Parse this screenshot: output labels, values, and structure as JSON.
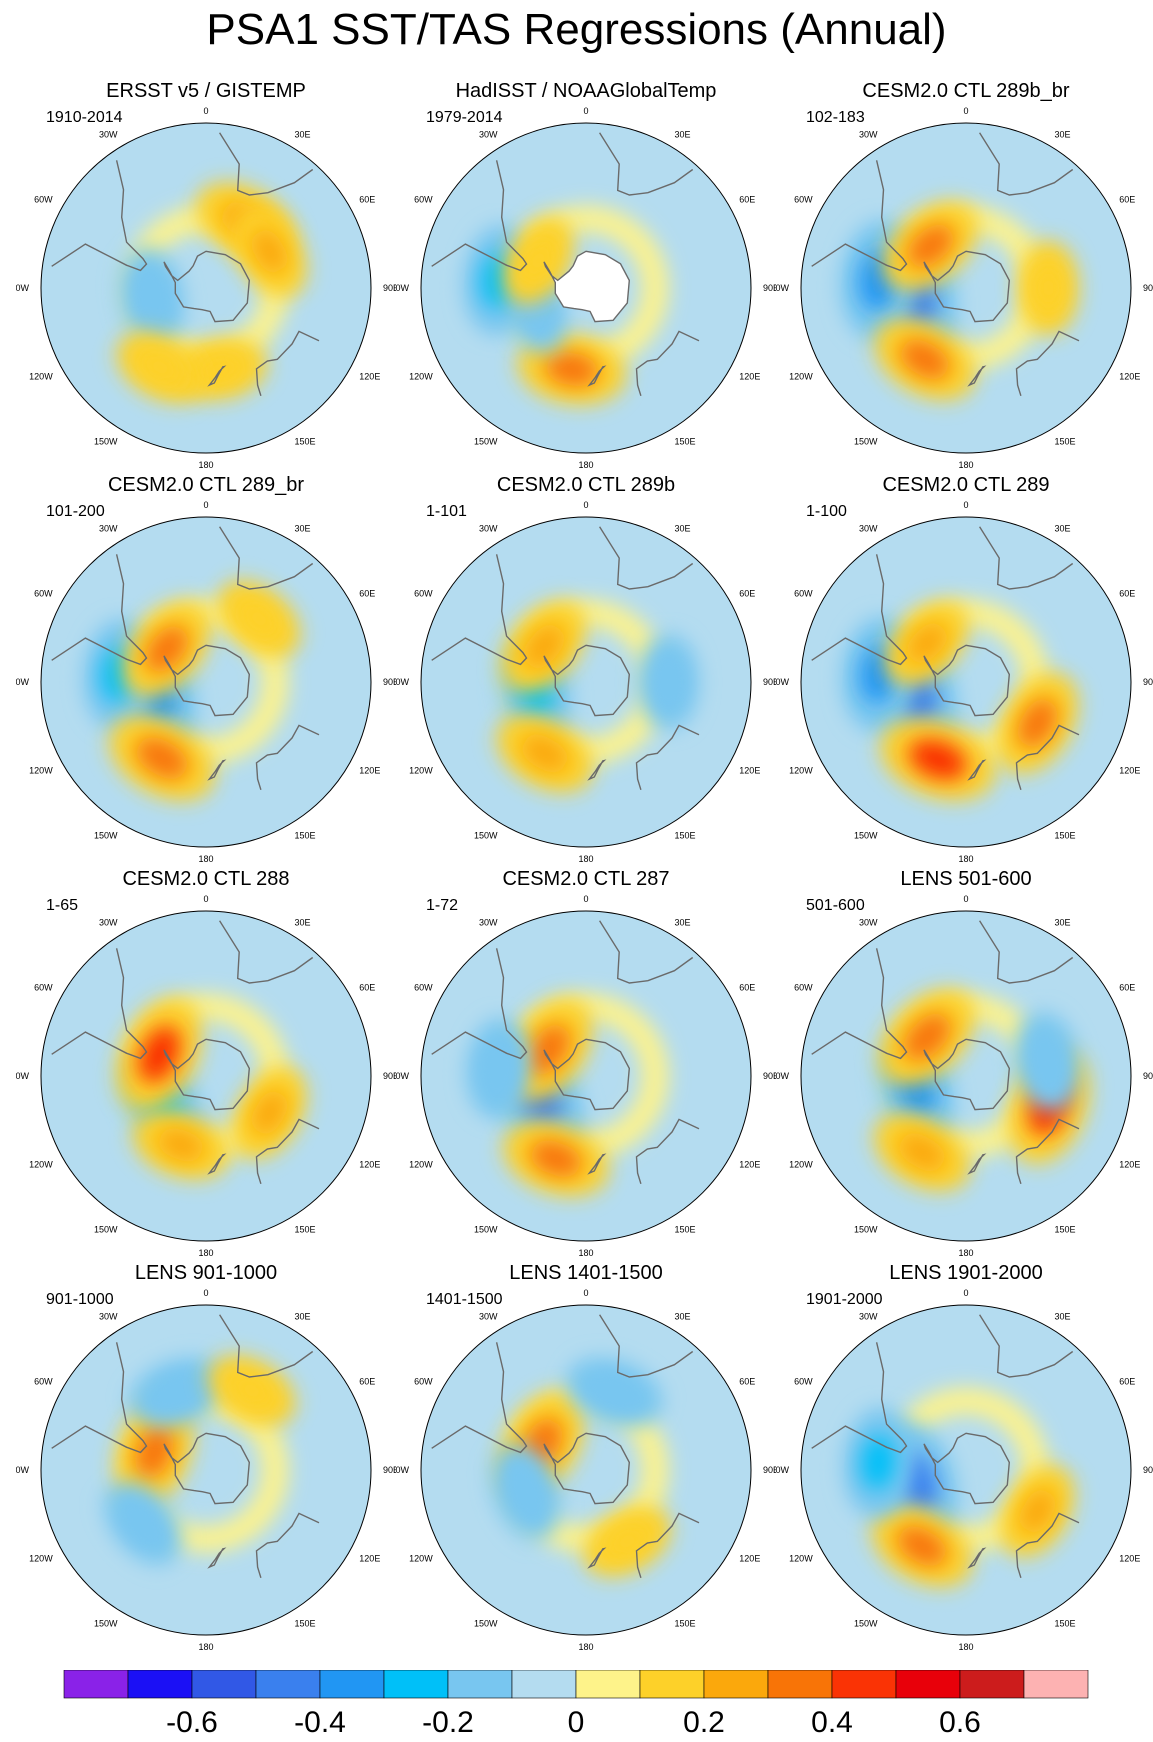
{
  "title": "PSA1 SST/TAS Regressions (Annual)",
  "longitude_labels": [
    "0",
    "30E",
    "60E",
    "90E",
    "120E",
    "150E",
    "180",
    "150W",
    "120W",
    "90W",
    "60W",
    "30W"
  ],
  "panels": [
    {
      "title": "ERSST v5 / GISTEMP",
      "period": "1910-2014",
      "masked": false,
      "anomalies": [
        {
          "lon": 30,
          "lat": -48,
          "level": 0.25
        },
        {
          "lon": -100,
          "lat": -60,
          "level": -0.2
        },
        {
          "lon": 170,
          "lat": -45,
          "level": 0.15
        },
        {
          "lon": -150,
          "lat": -40,
          "level": 0.15
        },
        {
          "lon": 60,
          "lat": -50,
          "level": 0.2
        }
      ]
    },
    {
      "title": "HadISST / NOAAGlobalTemp",
      "period": "1979-2014",
      "masked": true,
      "anomalies": [
        {
          "lon": -170,
          "lat": -45,
          "level": 0.3
        },
        {
          "lon": -110,
          "lat": -60,
          "level": -0.15
        },
        {
          "lon": -85,
          "lat": -42,
          "level": -0.3
        },
        {
          "lon": -60,
          "lat": -60,
          "level": 0.15
        }
      ]
    },
    {
      "title": "CESM2.0 CTL 289b_br",
      "period": "102-183",
      "masked": false,
      "anomalies": [
        {
          "lon": -100,
          "lat": -62,
          "level": -0.5
        },
        {
          "lon": -85,
          "lat": -42,
          "level": -0.4
        },
        {
          "lon": -150,
          "lat": -45,
          "level": 0.3
        },
        {
          "lon": -40,
          "lat": -60,
          "level": 0.3
        },
        {
          "lon": 90,
          "lat": -45,
          "level": 0.15
        }
      ]
    },
    {
      "title": "CESM2.0 CTL 289_br",
      "period": "101-200",
      "masked": false,
      "anomalies": [
        {
          "lon": -105,
          "lat": -62,
          "level": -0.4
        },
        {
          "lon": -85,
          "lat": -42,
          "level": -0.3
        },
        {
          "lon": -150,
          "lat": -42,
          "level": 0.35
        },
        {
          "lon": -50,
          "lat": -62,
          "level": 0.3
        },
        {
          "lon": 40,
          "lat": -45,
          "level": 0.15
        }
      ]
    },
    {
      "title": "CESM2.0 CTL 289b",
      "period": "1-101",
      "masked": false,
      "anomalies": [
        {
          "lon": -100,
          "lat": -62,
          "level": -0.3
        },
        {
          "lon": -150,
          "lat": -45,
          "level": 0.25
        },
        {
          "lon": -50,
          "lat": -60,
          "level": 0.25
        },
        {
          "lon": 90,
          "lat": -45,
          "level": -0.15
        }
      ]
    },
    {
      "title": "CESM2.0 CTL 289",
      "period": "1-100",
      "masked": false,
      "anomalies": [
        {
          "lon": -105,
          "lat": -62,
          "level": -0.45
        },
        {
          "lon": -85,
          "lat": -42,
          "level": -0.35
        },
        {
          "lon": -160,
          "lat": -45,
          "level": 0.4
        },
        {
          "lon": -45,
          "lat": -60,
          "level": 0.2
        },
        {
          "lon": 120,
          "lat": -45,
          "level": 0.3
        }
      ]
    },
    {
      "title": "CESM2.0 CTL 288",
      "period": "1-65",
      "masked": false,
      "anomalies": [
        {
          "lon": -120,
          "lat": -62,
          "level": -0.3
        },
        {
          "lon": -65,
          "lat": -62,
          "level": 0.4
        },
        {
          "lon": -160,
          "lat": -50,
          "level": 0.2
        },
        {
          "lon": 120,
          "lat": -50,
          "level": 0.2
        }
      ]
    },
    {
      "title": "CESM2.0 CTL 287",
      "period": "1-72",
      "masked": false,
      "anomalies": [
        {
          "lon": -115,
          "lat": -62,
          "level": -0.45
        },
        {
          "lon": -55,
          "lat": -65,
          "level": 0.35
        },
        {
          "lon": -160,
          "lat": -42,
          "level": 0.3
        },
        {
          "lon": -85,
          "lat": -42,
          "level": -0.2
        }
      ]
    },
    {
      "title": "LENS 501-600",
      "period": "501-600",
      "masked": false,
      "anomalies": [
        {
          "lon": -105,
          "lat": -62,
          "level": -0.35
        },
        {
          "lon": -45,
          "lat": -60,
          "level": 0.35
        },
        {
          "lon": -150,
          "lat": -42,
          "level": 0.25
        },
        {
          "lon": 110,
          "lat": -42,
          "level": 0.4
        },
        {
          "lon": 80,
          "lat": -45,
          "level": -0.2
        }
      ]
    },
    {
      "title": "LENS 901-1000",
      "period": "901-1000",
      "masked": false,
      "anomalies": [
        {
          "lon": -70,
          "lat": -60,
          "level": 0.35
        },
        {
          "lon": -20,
          "lat": -45,
          "level": -0.2
        },
        {
          "lon": -130,
          "lat": -45,
          "level": -0.15
        },
        {
          "lon": 30,
          "lat": -40,
          "level": 0.15
        }
      ]
    },
    {
      "title": "LENS 1401-1500",
      "period": "1401-1500",
      "masked": false,
      "anomalies": [
        {
          "lon": -60,
          "lat": -62,
          "level": 0.35
        },
        {
          "lon": -110,
          "lat": -55,
          "level": -0.2
        },
        {
          "lon": 20,
          "lat": -45,
          "level": -0.2
        },
        {
          "lon": 150,
          "lat": -45,
          "level": 0.15
        }
      ]
    },
    {
      "title": "LENS 1901-2000",
      "period": "1901-2000",
      "masked": false,
      "anomalies": [
        {
          "lon": -105,
          "lat": -62,
          "level": -0.45
        },
        {
          "lon": -150,
          "lat": -42,
          "level": 0.3
        },
        {
          "lon": -85,
          "lat": -42,
          "level": -0.3
        },
        {
          "lon": 120,
          "lat": -45,
          "level": 0.2
        }
      ]
    }
  ],
  "colorbar": {
    "levels": [
      -0.7,
      -0.6,
      -0.5,
      -0.4,
      -0.3,
      -0.2,
      -0.1,
      0,
      0.1,
      0.2,
      0.3,
      0.4,
      0.5,
      0.6,
      0.7
    ],
    "colors": [
      "#8a22e8",
      "#1b10f5",
      "#3158e6",
      "#3a80ee",
      "#2196f3",
      "#00c0f8",
      "#78c6f0",
      "#b4dcf0",
      "#fef38a",
      "#fdd129",
      "#fba80c",
      "#f87407",
      "#fa3305",
      "#e8000a",
      "#cc1c1c",
      "#fdb2b2"
    ],
    "tick_labels": [
      "-0.6",
      "-0.4",
      "-0.2",
      "0",
      "0.2",
      "0.4",
      "0.6"
    ],
    "tick_values": [
      -0.6,
      -0.4,
      -0.2,
      0,
      0.2,
      0.4,
      0.6
    ]
  },
  "style": {
    "land_color": "#ffffff",
    "coast_color": "#6a6a6a",
    "ocean_default": "#b4dcf0"
  }
}
